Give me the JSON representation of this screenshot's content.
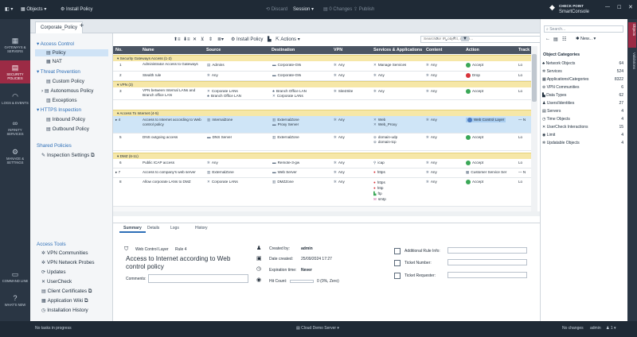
{
  "topbar": {
    "menu": "Objects",
    "install": "Install Policy",
    "discard": "Discard",
    "session": "Session",
    "changes": "0 Changes",
    "publish": "Publish",
    "brand1": "CHECK POINT",
    "brand2": "SmartConsole"
  },
  "rail": [
    {
      "label": "GATEWAYS & SERVERS",
      "icon": "▦"
    },
    {
      "label": "SECURITY POLICIES",
      "icon": "▤"
    },
    {
      "label": "LOGS & EVENTS",
      "icon": "◠"
    },
    {
      "label": "INFINITY SERVICES",
      "icon": "∞"
    },
    {
      "label": "MANAGE & SETTINGS",
      "icon": "⚙"
    },
    {
      "label": "COMMAND LINE",
      "icon": "▭"
    },
    {
      "label": "WHAT'S NEW",
      "icon": "?"
    }
  ],
  "tabs": {
    "active": "Corporate_Policy",
    "add": "+"
  },
  "nav": {
    "access_control": "Access Control",
    "policy": "Policy",
    "nat": "NAT",
    "threat": "Threat Prevention",
    "custom": "Custom Policy",
    "autonomous": "Autonomous Policy",
    "exceptions": "Exceptions",
    "https": "HTTPS Inspection",
    "inbound": "Inbound Policy",
    "outbound": "Outbound Policy",
    "shared": "Shared Policies",
    "inspection": "Inspection Settings",
    "tools": "Access Tools",
    "t1": "VPN Communities",
    "t2": "VPN Network Probes",
    "t3": "Updates",
    "t4": "UserCheck",
    "t5": "Client Certificates",
    "t6": "Application Wiki",
    "t7": "Installation History"
  },
  "toolbar": {
    "install": "Install Policy",
    "actions": "Actions",
    "search_placeholder": "Search for IP, object, action..."
  },
  "columns": {
    "no": "No.",
    "name": "Name",
    "source": "Source",
    "destination": "Destination",
    "vpn": "VPN",
    "services": "Services & Applications",
    "content": "Content",
    "action": "Action",
    "track": "Track"
  },
  "sections": [
    "Security Gateways Access (1-2)",
    "VPN (3)",
    "Access To Internet (4-5)",
    "DMZ (6-11)"
  ],
  "rows": [
    {
      "no": "1",
      "name": "Administrator Access to Gateways",
      "src": "Admins",
      "dst": "Corporate-GW",
      "vpn": "Any",
      "svc": "Manage Services",
      "content": "Any",
      "action": "Accept",
      "track": "Lo"
    },
    {
      "no": "2",
      "name": "Stealth rule",
      "src": "Any",
      "dst": "Corporate-GW",
      "vpn": "Any",
      "svc": "Any",
      "content": "Any",
      "action": "Drop",
      "track": "Lo"
    },
    {
      "no": "3",
      "name": "VPN between Internal LANs and Branch office LAN",
      "src": "Corporate LANs",
      "src2": "Branch Office LAN",
      "dst": "Branch Office LAN",
      "dst2": "Corporate LANs",
      "vpn": "Site2Site",
      "svc": "Any",
      "content": "Any",
      "action": "Accept",
      "track": "Lo"
    },
    {
      "no": "4",
      "name": "Access to Internet according to Web control policy",
      "src": "InternalZone",
      "dst": "ExternalZone",
      "dst2": "Proxy Server",
      "vpn": "Any",
      "svc": "Web",
      "svc2": "Web_Proxy",
      "content": "Any",
      "action": "Web Control Layer",
      "track": "N"
    },
    {
      "no": "5",
      "name": "DNS outgoing access",
      "src": "DNS Server",
      "dst": "ExternalZone",
      "vpn": "Any",
      "svc": "domain-udp",
      "svc2": "domain-tcp",
      "content": "Any",
      "action": "Accept",
      "track": "Lo"
    },
    {
      "no": "6",
      "name": "Public ICAP access",
      "src": "Any",
      "dst": "Remote-3-gw",
      "vpn": "Any",
      "svc": "icap",
      "content": "Any",
      "action": "Accept",
      "track": "Lo"
    },
    {
      "no": "7",
      "name": "Access to company's web server",
      "src": "ExternalZone",
      "dst": "Web Server",
      "vpn": "Any",
      "svc": "https",
      "content": "Any",
      "action": "Customer Service Ser",
      "track": "N"
    },
    {
      "no": "8",
      "name": "Allow corporate LANs to DMZ",
      "src": "Corporate LANs",
      "dst": "DMZZone",
      "vpn": "Any",
      "svc": "https",
      "svc2": "http",
      "svc3": "ftp",
      "svc4": "smtp",
      "content": "Any",
      "action": "Accept",
      "track": "Lo"
    }
  ],
  "bottom": {
    "tabs": [
      "Summary",
      "Details",
      "Logs",
      "History"
    ],
    "layer_label": "Web Control Layer",
    "rule": "Rule 4",
    "title": "Access to Internet according to Web control policy",
    "comments": "Comments:",
    "created_by_l": "Created by:",
    "created_by": "admin",
    "date_l": "Date created:",
    "date": "25/09/2024 17:27",
    "exp_l": "Expiration time:",
    "exp": "Never",
    "hit_l": "Hit Count:",
    "hit": "0 (0%, Zero)",
    "f1": "Additional Rule Info:",
    "f2": "Ticket Number:",
    "f3": "Ticket Requester:"
  },
  "right": {
    "search": "Search...",
    "new": "New...",
    "title": "Object Categories",
    "cats": [
      {
        "name": "Network Objects",
        "count": "64"
      },
      {
        "name": "Services",
        "count": "524"
      },
      {
        "name": "Applications/Categories",
        "count": "8322"
      },
      {
        "name": "VPN Communities",
        "count": "6"
      },
      {
        "name": "Data Types",
        "count": "62"
      },
      {
        "name": "Users/Identities",
        "count": "27"
      },
      {
        "name": "Servers",
        "count": "4"
      },
      {
        "name": "Time Objects",
        "count": "4"
      },
      {
        "name": "UserCheck Interactions",
        "count": "15"
      },
      {
        "name": "Limit",
        "count": "4"
      },
      {
        "name": "Updatable Objects",
        "count": "4"
      }
    ],
    "side1": "Objects",
    "side2": "Validations"
  },
  "status": {
    "tasks": "No tasks in progress",
    "server": "Cloud Demo Server",
    "changes": "No changes",
    "user": "admin"
  }
}
